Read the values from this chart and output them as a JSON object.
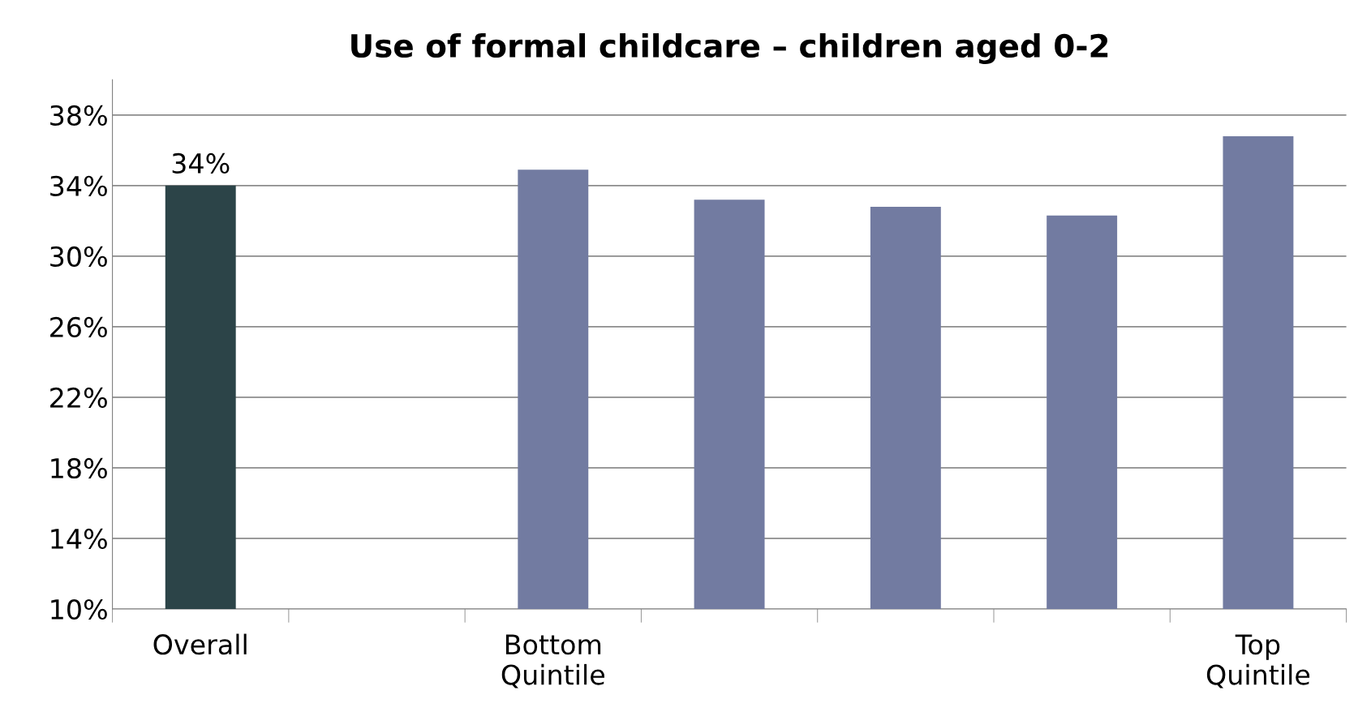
{
  "chart_data": {
    "type": "bar",
    "title": "Use of formal childcare – children aged 0-2",
    "categories": [
      "Overall",
      null,
      "Bottom\nQuintile",
      null,
      null,
      null,
      "Top\nQuintile"
    ],
    "values": [
      34,
      null,
      34.9,
      33.2,
      32.8,
      32.3,
      36.8
    ],
    "colors": [
      "#2c4448",
      "#727ba1",
      "#727ba1",
      "#727ba1",
      "#727ba1",
      "#727ba1",
      "#727ba1"
    ],
    "value_labels": [
      "34%",
      null,
      null,
      null,
      null,
      null,
      null
    ],
    "ylim": [
      10,
      40
    ],
    "yticks": [
      {
        "value": 10,
        "label": "10%"
      },
      {
        "value": 14,
        "label": "14%"
      },
      {
        "value": 18,
        "label": "18%"
      },
      {
        "value": 22,
        "label": "22%"
      },
      {
        "value": 26,
        "label": "26%"
      },
      {
        "value": 30,
        "label": "30%"
      },
      {
        "value": 34,
        "label": "34%"
      },
      {
        "value": 38,
        "label": "38%"
      }
    ],
    "grid": "y"
  }
}
